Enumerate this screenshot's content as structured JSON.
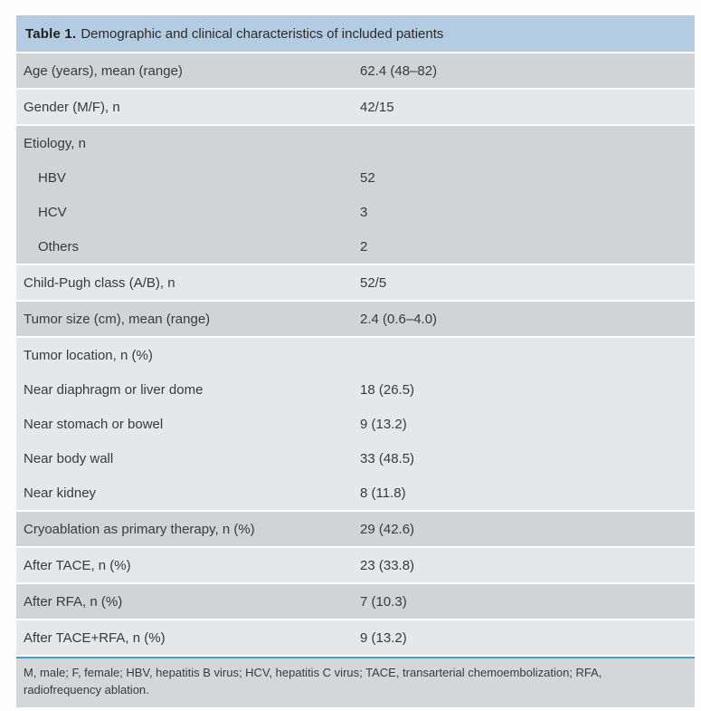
{
  "table": {
    "title": {
      "label": "Table 1.",
      "text": "Demographic and clinical characteristics of included patients"
    },
    "blocks": [
      {
        "shade": "dark",
        "lines": [
          {
            "label": "Age (years), mean (range)",
            "value": "62.4 (48–82)",
            "indent": false
          }
        ]
      },
      {
        "shade": "light",
        "lines": [
          {
            "label": "Gender (M/F), n",
            "value": "42/15",
            "indent": false
          }
        ]
      },
      {
        "shade": "dark",
        "lines": [
          {
            "label": "Etiology, n",
            "value": "",
            "indent": false
          },
          {
            "label": "HBV",
            "value": "52",
            "indent": true
          },
          {
            "label": "HCV",
            "value": "3",
            "indent": true
          },
          {
            "label": "Others",
            "value": "2",
            "indent": true
          }
        ]
      },
      {
        "shade": "light",
        "lines": [
          {
            "label": "Child-Pugh class (A/B), n",
            "value": "52/5",
            "indent": false
          }
        ]
      },
      {
        "shade": "dark",
        "lines": [
          {
            "label": "Tumor size (cm), mean (range)",
            "value": "2.4 (0.6–4.0)",
            "indent": false
          }
        ]
      },
      {
        "shade": "light",
        "lines": [
          {
            "label": "Tumor location, n (%)",
            "value": "",
            "indent": false
          },
          {
            "label": "Near diaphragm or liver dome",
            "value": "18 (26.5)",
            "indent": false
          },
          {
            "label": "Near stomach or bowel",
            "value": "9 (13.2)",
            "indent": false
          },
          {
            "label": "Near body wall",
            "value": "33 (48.5)",
            "indent": false
          },
          {
            "label": "Near kidney",
            "value": "8 (11.8)",
            "indent": false
          }
        ]
      },
      {
        "shade": "dark",
        "lines": [
          {
            "label": "Cryoablation as primary therapy, n (%)",
            "value": "29 (42.6)",
            "indent": false
          }
        ]
      },
      {
        "shade": "light",
        "lines": [
          {
            "label": "After TACE, n (%)",
            "value": "23 (33.8)",
            "indent": false
          }
        ]
      },
      {
        "shade": "dark",
        "lines": [
          {
            "label": "After RFA, n (%)",
            "value": "7 (10.3)",
            "indent": false
          }
        ]
      },
      {
        "shade": "light",
        "lines": [
          {
            "label": "After TACE+RFA, n (%)",
            "value": "9 (13.2)",
            "indent": false
          }
        ]
      }
    ],
    "footnote": {
      "line1": "M, male; F, female; HBV, hepatitis B virus; HCV, hepatitis C virus; TACE, transarterial chemoembolization; RFA,",
      "line2": "radiofrequency ablation."
    }
  },
  "colors": {
    "header_bg": "#b3cce2",
    "row_dark": "#d2d3d4",
    "row_light": "#e6e7e8",
    "footnote_bg": "#d5d6d7",
    "accent_line": "#4f9bc8",
    "text": "#3a3a3a"
  }
}
